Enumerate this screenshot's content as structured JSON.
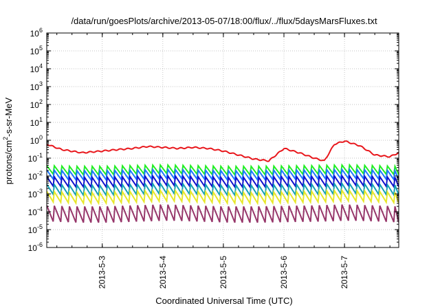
{
  "chart_data": {
    "type": "line",
    "title": "/data/run/goesPlots/archive/2013-05-07/18:00/flux/../flux/5daysMarsFluxes.txt",
    "xlabel": "Coordinated Universal Time (UTC)",
    "ylabel_parts": [
      "protons/cm",
      "2",
      "-s-sr-MeV"
    ],
    "yscale": "log",
    "ylim": [
      1e-06,
      1000000.0
    ],
    "xlim": [
      "2013-05-02 02:00",
      "2013-05-07 21:30"
    ],
    "grid": true,
    "legend": "none",
    "y_tick_labels": [
      {
        "base": "10",
        "exp": "-6"
      },
      {
        "base": "10",
        "exp": "-5"
      },
      {
        "base": "10",
        "exp": "-4"
      },
      {
        "base": "10",
        "exp": "-3"
      },
      {
        "base": "10",
        "exp": "-2"
      },
      {
        "base": "10",
        "exp": "-1"
      },
      {
        "base": "10",
        "exp": "0"
      },
      {
        "base": "10",
        "exp": "1"
      },
      {
        "base": "10",
        "exp": "2"
      },
      {
        "base": "10",
        "exp": "3"
      },
      {
        "base": "10",
        "exp": "4"
      },
      {
        "base": "10",
        "exp": "5"
      },
      {
        "base": "10",
        "exp": "6"
      }
    ],
    "x_tick_labels": [
      "2013-5-3",
      "2013-5-4",
      "2013-5-5",
      "2013-5-6",
      "2013-5-7"
    ],
    "x_tick_dates": [
      "2013-05-03",
      "2013-05-04",
      "2013-05-05",
      "2013-05-06",
      "2013-05-07"
    ],
    "series": [
      {
        "color": "#e8161b",
        "x": [
          "2013-05-02 02:00",
          "2013-05-02 08:00",
          "2013-05-02 16:00",
          "2013-05-03 00:00",
          "2013-05-03 06:00",
          "2013-05-03 12:00",
          "2013-05-03 18:00",
          "2013-05-04 00:00",
          "2013-05-04 06:00",
          "2013-05-04 12:00",
          "2013-05-04 18:00",
          "2013-05-05 00:00",
          "2013-05-05 06:00",
          "2013-05-05 12:00",
          "2013-05-05 18:00",
          "2013-05-06 00:00",
          "2013-05-06 06:00",
          "2013-05-06 12:00",
          "2013-05-06 16:00",
          "2013-05-06 20:00",
          "2013-05-07 00:00",
          "2013-05-07 06:00",
          "2013-05-07 12:00",
          "2013-05-07 18:00",
          "2013-05-07 21:30"
        ],
        "y": [
          0.6,
          0.3,
          0.2,
          0.25,
          0.3,
          0.35,
          0.45,
          0.4,
          0.35,
          0.4,
          0.35,
          0.25,
          0.15,
          0.09,
          0.07,
          0.35,
          0.2,
          0.1,
          0.07,
          0.6,
          0.9,
          0.5,
          0.15,
          0.12,
          0.2
        ]
      },
      {
        "color": "#22ee22",
        "x": [
          "2013-05-02 02:00",
          "2013-05-02 12:00",
          "2013-05-03 00:00",
          "2013-05-03 12:00",
          "2013-05-04 00:00",
          "2013-05-04 12:00",
          "2013-05-05 00:00",
          "2013-05-05 12:00",
          "2013-05-06 00:00",
          "2013-05-06 12:00",
          "2013-05-07 00:00",
          "2013-05-07 12:00",
          "2013-05-07 21:30"
        ],
        "y": [
          0.022,
          0.02,
          0.02,
          0.022,
          0.024,
          0.022,
          0.02,
          0.02,
          0.021,
          0.022,
          0.024,
          0.022,
          0.02
        ]
      },
      {
        "color": "#1a78ff",
        "x": [
          "2013-05-02 02:00",
          "2013-05-02 12:00",
          "2013-05-03 00:00",
          "2013-05-03 12:00",
          "2013-05-04 00:00",
          "2013-05-04 12:00",
          "2013-05-05 00:00",
          "2013-05-05 12:00",
          "2013-05-06 00:00",
          "2013-05-06 12:00",
          "2013-05-07 00:00",
          "2013-05-07 12:00",
          "2013-05-07 21:30"
        ],
        "y": [
          0.012,
          0.011,
          0.011,
          0.012,
          0.013,
          0.012,
          0.011,
          0.011,
          0.012,
          0.012,
          0.013,
          0.012,
          0.011
        ]
      },
      {
        "color": "#1010cc",
        "x": [
          "2013-05-02 02:00",
          "2013-05-02 12:00",
          "2013-05-03 00:00",
          "2013-05-03 12:00",
          "2013-05-04 00:00",
          "2013-05-04 12:00",
          "2013-05-05 00:00",
          "2013-05-05 12:00",
          "2013-05-06 00:00",
          "2013-05-06 12:00",
          "2013-05-07 00:00",
          "2013-05-07 12:00",
          "2013-05-07 21:30"
        ],
        "y": [
          0.005,
          0.0045,
          0.0045,
          0.005,
          0.0055,
          0.005,
          0.0045,
          0.0045,
          0.005,
          0.005,
          0.0055,
          0.005,
          0.0045
        ]
      },
      {
        "color": "#14a0b4",
        "x": [
          "2013-05-02 02:00",
          "2013-05-02 12:00",
          "2013-05-03 00:00",
          "2013-05-03 12:00",
          "2013-05-04 00:00",
          "2013-05-04 12:00",
          "2013-05-05 00:00",
          "2013-05-05 12:00",
          "2013-05-06 00:00",
          "2013-05-06 12:00",
          "2013-05-07 00:00",
          "2013-05-07 12:00",
          "2013-05-07 21:30"
        ],
        "y": [
          0.0018,
          0.0016,
          0.0016,
          0.0018,
          0.002,
          0.0018,
          0.0016,
          0.0016,
          0.0017,
          0.0018,
          0.002,
          0.0018,
          0.0016
        ]
      },
      {
        "color": "#e8e82a",
        "x": [
          "2013-05-02 02:00",
          "2013-05-02 12:00",
          "2013-05-03 00:00",
          "2013-05-03 12:00",
          "2013-05-04 00:00",
          "2013-05-04 12:00",
          "2013-05-05 00:00",
          "2013-05-05 12:00",
          "2013-05-06 00:00",
          "2013-05-06 12:00",
          "2013-05-07 00:00",
          "2013-05-07 12:00",
          "2013-05-07 21:30"
        ],
        "y": [
          0.0007,
          0.0006,
          0.0006,
          0.0007,
          0.0008,
          0.0007,
          0.0006,
          0.0006,
          0.00065,
          0.0007,
          0.0008,
          0.0007,
          0.0006
        ]
      },
      {
        "color": "#96366a",
        "x": [
          "2013-05-02 02:00",
          "2013-05-02 12:00",
          "2013-05-03 00:00",
          "2013-05-03 12:00",
          "2013-05-04 00:00",
          "2013-05-04 12:00",
          "2013-05-05 00:00",
          "2013-05-05 12:00",
          "2013-05-06 00:00",
          "2013-05-06 12:00",
          "2013-05-07 00:00",
          "2013-05-07 12:00",
          "2013-05-07 21:30"
        ],
        "y": [
          8e-05,
          7e-05,
          7e-05,
          8e-05,
          9e-05,
          8e-05,
          7e-05,
          7e-05,
          7.5e-05,
          8e-05,
          9e-05,
          8e-05,
          7e-05
        ]
      }
    ],
    "sawtooth_series": [
      1,
      2,
      3,
      4,
      5,
      6
    ]
  }
}
